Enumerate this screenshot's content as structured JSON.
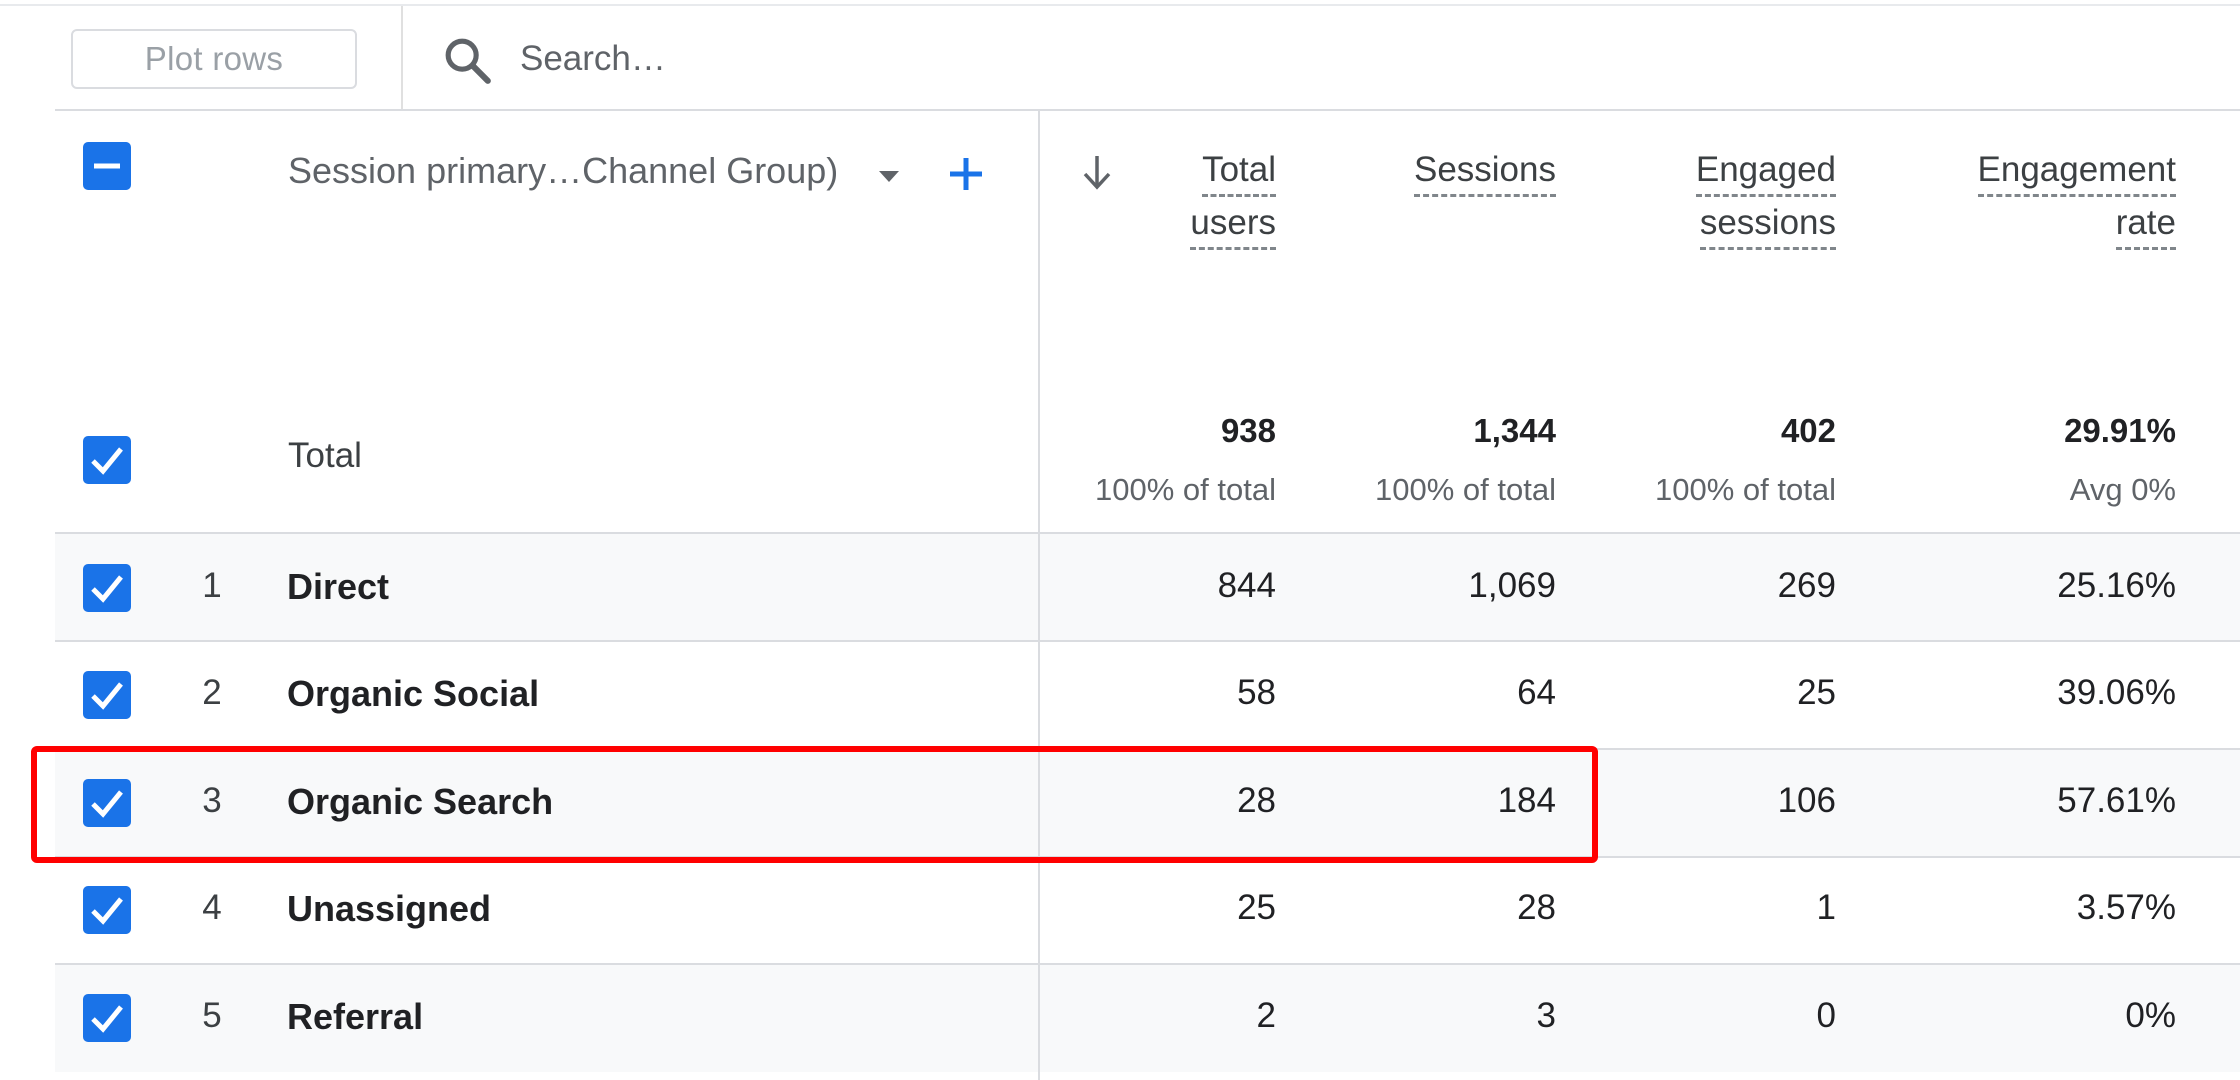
{
  "toolbar": {
    "plot_rows_label": "Plot rows",
    "search_placeholder": "Search…"
  },
  "table": {
    "dimension_header": "Session primary…Channel Group)",
    "metric_headers": [
      {
        "line1": "Total",
        "line2": "users"
      },
      {
        "line1": "Sessions",
        "line2": ""
      },
      {
        "line1": "Engaged",
        "line2": "sessions"
      },
      {
        "line1": "Engagement",
        "line2": "rate"
      }
    ],
    "total": {
      "label": "Total",
      "values": [
        "938",
        "1,344",
        "402",
        "29.91%"
      ],
      "subs": [
        "100% of total",
        "100% of total",
        "100% of total",
        "Avg 0%"
      ]
    },
    "rows": [
      {
        "num": "1",
        "name": "Direct",
        "values": [
          "844",
          "1,069",
          "269",
          "25.16%"
        ]
      },
      {
        "num": "2",
        "name": "Organic Social",
        "values": [
          "58",
          "64",
          "25",
          "39.06%"
        ]
      },
      {
        "num": "3",
        "name": "Organic Search",
        "values": [
          "28",
          "184",
          "106",
          "57.61%"
        ]
      },
      {
        "num": "4",
        "name": "Unassigned",
        "values": [
          "25",
          "28",
          "1",
          "3.57%"
        ]
      },
      {
        "num": "5",
        "name": "Referral",
        "values": [
          "2",
          "3",
          "0",
          "0%"
        ]
      }
    ]
  },
  "colors": {
    "checkbox": "#1a73e8",
    "row_shade": "#f8f9fa",
    "highlight": "#ff0000",
    "add_icon": "#1a73e8"
  },
  "icons": {
    "search": "search-icon",
    "dropdown": "chevron-down-icon",
    "add": "plus-icon",
    "sort": "arrow-down-icon",
    "checkbox_header": "minus-icon",
    "checkbox_row": "check-icon"
  }
}
